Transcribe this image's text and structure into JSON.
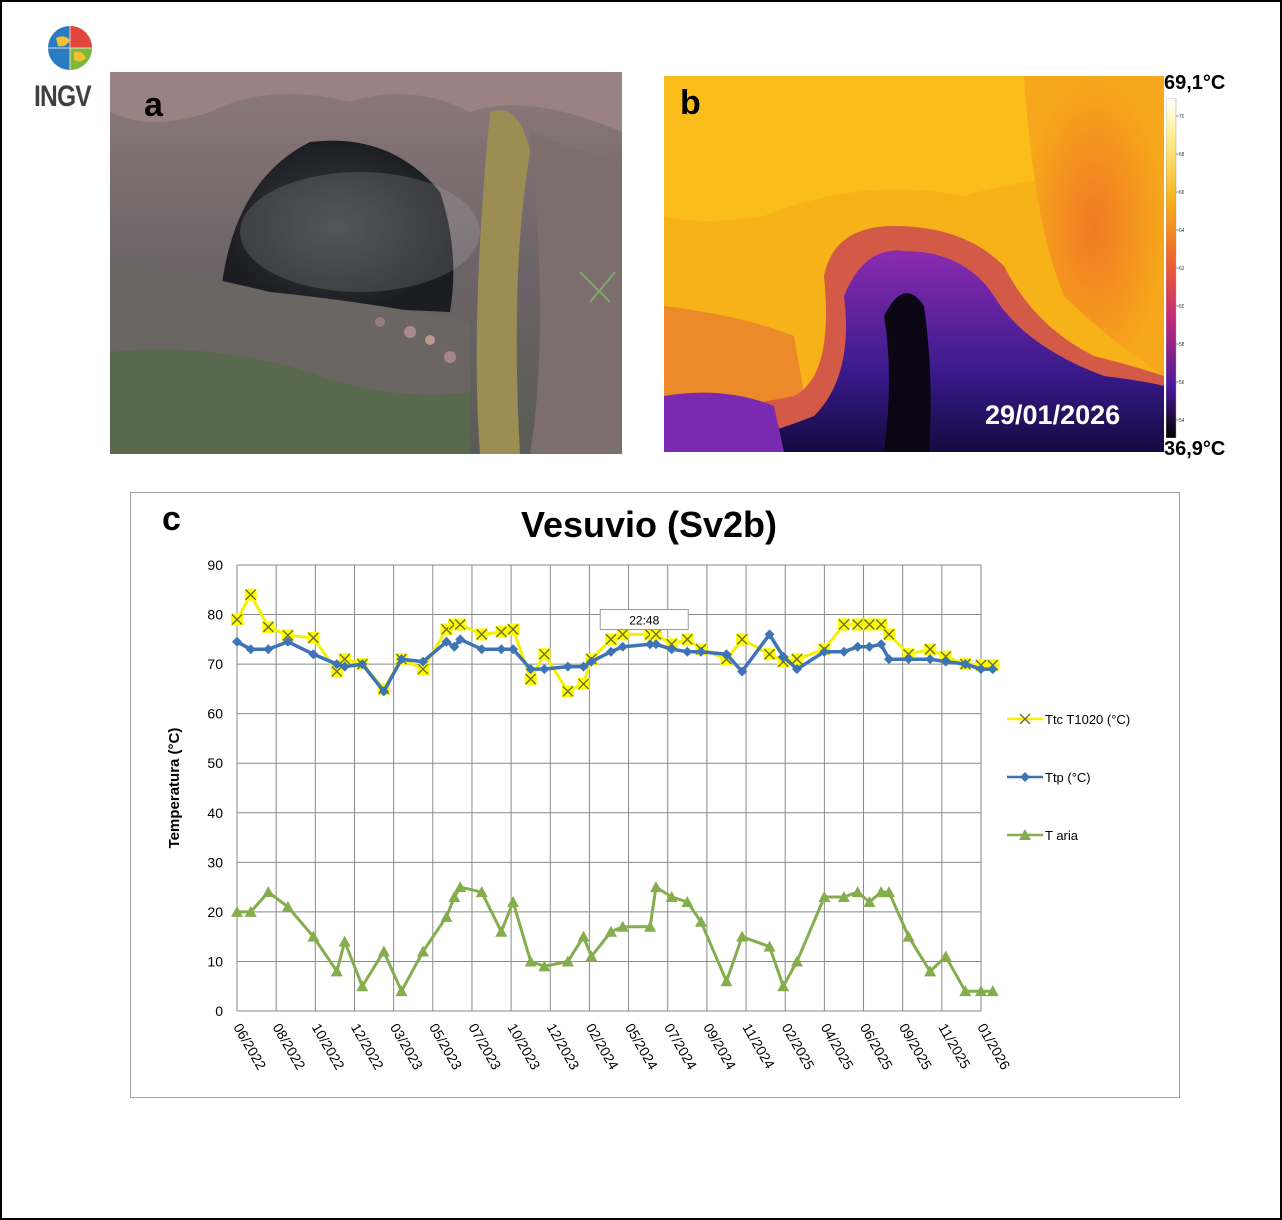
{
  "logo": {
    "text": "INGV"
  },
  "panels": {
    "a": {
      "letter": "a"
    },
    "b": {
      "letter": "b",
      "date": "29/01/2026",
      "max_temp": "69,1°C",
      "min_temp": "36,9°C",
      "colorbar_ticks": [
        "70",
        "68",
        "66",
        "64",
        "62",
        "60",
        "58",
        "56",
        "54"
      ]
    },
    "c": {
      "letter": "c"
    }
  },
  "tooltip": "22:48",
  "colors": {
    "ttc": "#ffff00",
    "ttp": "#3e73b6",
    "taria": "#84ad4d"
  },
  "chart_data": {
    "type": "line",
    "title": "Vesuvio (Sv2b)",
    "xlabel": "",
    "ylabel": "Temperatura (°C)",
    "ylim": [
      0,
      90
    ],
    "ytick_step": 10,
    "grid": true,
    "legend_placement": "right",
    "categories": [
      "06/2022",
      "08/2022",
      "10/2022",
      "12/2022",
      "03/2023",
      "05/2023",
      "07/2023",
      "10/2023",
      "12/2023",
      "02/2024",
      "05/2024",
      "07/2024",
      "09/2024",
      "11/2024",
      "02/2025",
      "04/2025",
      "06/2025",
      "09/2025",
      "11/2025",
      "01/2026"
    ],
    "series": [
      {
        "name": "Ttc T1020 (°C)",
        "marker": "x",
        "x": [
          0,
          0.35,
          0.8,
          1.3,
          1.95,
          2.55,
          2.75,
          3.2,
          3.75,
          4.2,
          4.75,
          5.35,
          5.55,
          5.7,
          6.25,
          6.75,
          7.05,
          7.5,
          7.85,
          8.45,
          8.85,
          9.05,
          9.55,
          9.85,
          10.55,
          10.7,
          11.1,
          11.5,
          11.85,
          12.5,
          12.9,
          13.6,
          13.95,
          14.3,
          15.0,
          15.5,
          15.85,
          16.15,
          16.45,
          16.65,
          17.15,
          17.7,
          18.1,
          18.6,
          19.0,
          19.3
        ],
        "values": [
          79,
          84,
          77.5,
          75.8,
          75.3,
          68.5,
          71,
          70,
          65,
          71,
          69,
          77,
          78,
          78,
          76,
          76.5,
          77,
          67,
          72,
          64.5,
          66,
          71,
          75,
          76,
          76,
          76,
          74,
          75,
          73,
          71,
          75,
          72,
          70.5,
          71,
          73,
          78,
          78,
          78,
          78,
          76,
          72,
          73,
          71.5,
          70,
          69.8,
          69.8
        ]
      },
      {
        "name": "Ttp (°C)",
        "marker": "diamond",
        "x": [
          0,
          0.35,
          0.8,
          1.3,
          1.95,
          2.55,
          2.75,
          3.2,
          3.75,
          4.2,
          4.75,
          5.35,
          5.55,
          5.7,
          6.25,
          6.75,
          7.05,
          7.5,
          7.85,
          8.45,
          8.85,
          9.05,
          9.55,
          9.85,
          10.55,
          10.7,
          11.1,
          11.5,
          11.85,
          12.5,
          12.9,
          13.6,
          13.95,
          14.3,
          15.0,
          15.5,
          15.85,
          16.15,
          16.45,
          16.65,
          17.15,
          17.7,
          18.1,
          18.6,
          19.0,
          19.3
        ],
        "values": [
          74.5,
          73,
          73,
          74.5,
          72,
          70,
          69.5,
          70,
          64.5,
          71,
          70.5,
          74.5,
          73.5,
          75,
          73,
          73,
          73,
          69,
          69,
          69.5,
          69.5,
          70.5,
          72.5,
          73.5,
          74,
          74,
          73,
          72.5,
          72.5,
          72,
          68.5,
          76,
          71.5,
          69,
          72.5,
          72.5,
          73.5,
          73.5,
          74,
          71,
          71,
          71,
          70.5,
          70,
          69,
          69
        ]
      },
      {
        "name": "T aria",
        "marker": "triangle",
        "x": [
          0,
          0.35,
          0.8,
          1.3,
          1.95,
          2.55,
          2.75,
          3.2,
          3.75,
          4.2,
          4.75,
          5.35,
          5.55,
          5.7,
          6.25,
          6.75,
          7.05,
          7.5,
          7.85,
          8.45,
          8.85,
          9.05,
          9.55,
          9.85,
          10.55,
          10.7,
          11.1,
          11.5,
          11.85,
          12.5,
          12.9,
          13.6,
          13.95,
          14.3,
          15.0,
          15.5,
          15.85,
          16.15,
          16.45,
          16.65,
          17.15,
          17.7,
          18.1,
          18.6,
          19.0,
          19.3
        ],
        "values": [
          20,
          20,
          24,
          21,
          15,
          8,
          14,
          5,
          12,
          4,
          12,
          19,
          23,
          25,
          24,
          16,
          22,
          10,
          9,
          10,
          15,
          11,
          16,
          17,
          17,
          25,
          23,
          22,
          18,
          6,
          15,
          13,
          5,
          10,
          23,
          23,
          24,
          22,
          24,
          24,
          15,
          8,
          11,
          4,
          4,
          4
        ]
      }
    ]
  }
}
